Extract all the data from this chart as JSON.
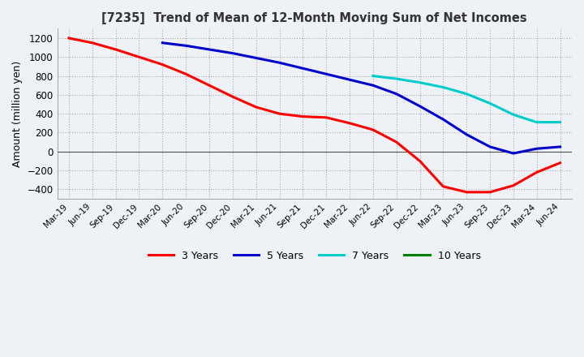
{
  "title": "[7235]  Trend of Mean of 12-Month Moving Sum of Net Incomes",
  "ylabel": "Amount (million yen)",
  "ylim": [
    -500,
    1300
  ],
  "yticks": [
    -400,
    -200,
    0,
    200,
    400,
    600,
    800,
    1000,
    1200
  ],
  "background_color": "#f0f4f8",
  "grid_color": "#999999",
  "legend_entries": [
    "3 Years",
    "5 Years",
    "7 Years",
    "10 Years"
  ],
  "legend_colors": [
    "#ff0000",
    "#0000cc",
    "#00cccc",
    "#008000"
  ],
  "x_labels": [
    "Mar-19",
    "Jun-19",
    "Sep-19",
    "Dec-19",
    "Mar-20",
    "Jun-20",
    "Sep-20",
    "Dec-20",
    "Mar-21",
    "Jun-21",
    "Sep-21",
    "Dec-21",
    "Mar-22",
    "Jun-22",
    "Sep-22",
    "Dec-22",
    "Mar-23",
    "Jun-23",
    "Sep-23",
    "Dec-23",
    "Mar-24",
    "Jun-24"
  ],
  "series_3y": [
    1200,
    1150,
    1080,
    1000,
    920,
    820,
    700,
    580,
    470,
    400,
    370,
    360,
    300,
    230,
    100,
    -100,
    -370,
    -430,
    -430,
    -360,
    -220,
    -120
  ],
  "series_5y": [
    null,
    null,
    null,
    null,
    1150,
    1120,
    1080,
    1040,
    990,
    940,
    880,
    820,
    760,
    700,
    610,
    480,
    340,
    180,
    50,
    -20,
    30,
    50
  ],
  "series_7y": [
    null,
    null,
    null,
    null,
    null,
    null,
    null,
    null,
    null,
    null,
    null,
    null,
    null,
    800,
    770,
    730,
    680,
    610,
    510,
    390,
    310,
    310
  ],
  "series_10y": [
    null,
    null,
    null,
    null,
    null,
    null,
    null,
    null,
    null,
    null,
    null,
    null,
    null,
    null,
    null,
    null,
    null,
    null,
    null,
    null,
    null,
    null
  ]
}
